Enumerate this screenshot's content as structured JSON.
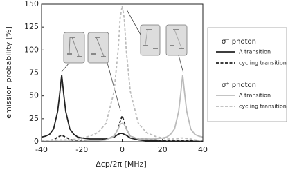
{
  "chart_data": {
    "type": "line",
    "xlabel": "Δcp/2π [MHz]",
    "ylabel": "emission probability [%]",
    "xlim": [
      -40,
      40
    ],
    "xticks": [
      -40,
      -20,
      0,
      20,
      40
    ],
    "ylim": [
      0,
      150
    ],
    "yticks": [
      0,
      25,
      50,
      75,
      100,
      125,
      150
    ],
    "legend_titles": [
      "σ⁻ photon",
      "σ⁺ photon"
    ],
    "x": [
      -40,
      -38,
      -36,
      -34,
      -32,
      -31,
      -30,
      -29,
      -28,
      -26,
      -24,
      -22,
      -20,
      -16,
      -12,
      -8,
      -4,
      -2,
      -1,
      0,
      1,
      2,
      4,
      8,
      12,
      16,
      20,
      22,
      24,
      26,
      28,
      29,
      30,
      31,
      32,
      34,
      36,
      38,
      40
    ],
    "series": [
      {
        "name": "Λ transition",
        "color": "#222222",
        "dashed": false,
        "legend_group": 0,
        "values": [
          5,
          6,
          8,
          14,
          33,
          52,
          73,
          52,
          33,
          14,
          8,
          5,
          4,
          3,
          3,
          3,
          5,
          8,
          9,
          9,
          8,
          7,
          4,
          2,
          1,
          1,
          0.5,
          0.5,
          0.5,
          0.5,
          0.5,
          0.5,
          0.5,
          0.5,
          0.5,
          0.5,
          0.5,
          0.5,
          0.5
        ]
      },
      {
        "name": "cycling transition",
        "color": "#222222",
        "dashed": true,
        "legend_group": 0,
        "values": [
          1,
          1,
          1.5,
          2,
          5,
          6,
          7,
          6,
          5,
          2.5,
          1.5,
          1,
          1,
          1,
          1.5,
          2.5,
          6,
          14,
          22,
          28,
          22,
          14,
          6,
          3,
          3,
          2,
          1,
          1,
          1,
          1,
          1,
          1,
          1,
          1,
          1,
          1,
          0.5,
          0.5,
          0.5
        ]
      },
      {
        "name": "Λ transition",
        "color": "#bbbbbb",
        "dashed": false,
        "legend_group": 1,
        "values": [
          0.5,
          0.5,
          0.5,
          0.5,
          0.5,
          0.5,
          0.5,
          0.5,
          0.5,
          0.5,
          0.5,
          0.5,
          0.5,
          1,
          1,
          2,
          6,
          14,
          19,
          20,
          19,
          14,
          6,
          3,
          3,
          3,
          4,
          5,
          8,
          14,
          33,
          52,
          73,
          52,
          33,
          14,
          8,
          6,
          5
        ]
      },
      {
        "name": "cycling transition",
        "color": "#bbbbbb",
        "dashed": true,
        "legend_group": 1,
        "values": [
          1,
          1,
          1.5,
          1.5,
          2,
          2,
          2,
          2,
          2,
          2,
          2.5,
          3,
          4,
          6,
          10,
          20,
          55,
          100,
          135,
          148,
          135,
          100,
          55,
          20,
          10,
          6,
          4,
          3,
          3,
          3,
          3.5,
          4,
          4,
          4,
          3.5,
          3,
          2,
          1.5,
          1
        ]
      }
    ]
  }
}
